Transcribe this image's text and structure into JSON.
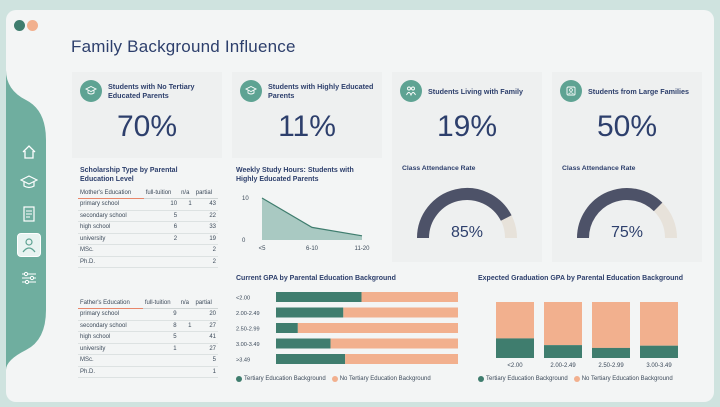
{
  "page": {
    "title": "Family Background Influence"
  },
  "colors": {
    "teal": "#3f7d6e",
    "teal_light": "#5ea393",
    "peach": "#f2b08e",
    "navy": "#4d5268",
    "track": "#e7e2da"
  },
  "sidebar": {
    "items": [
      {
        "name": "home-icon"
      },
      {
        "name": "graduation-cap-icon"
      },
      {
        "name": "document-icon"
      },
      {
        "name": "family-icon",
        "active": true
      },
      {
        "name": "sliders-icon"
      }
    ]
  },
  "kpis": [
    {
      "label": "Students with No Tertiary Educated Parents",
      "value": "70%",
      "icon": "graduation-cap-icon"
    },
    {
      "label": "Students with Highly Educated Parents",
      "value": "11%",
      "icon": "graduation-cap-icon"
    },
    {
      "label": "Students Living with Family",
      "value": "19%",
      "icon": "family-icon"
    },
    {
      "label": "Students from Large Families",
      "value": "50%",
      "icon": "family-icon"
    }
  ],
  "scholarship": {
    "title": "Scholarship Type by Parental Education Level",
    "mother": {
      "header": [
        "Mother's Education",
        "full-tuition",
        "n/a",
        "partial"
      ],
      "rows": [
        [
          "primary school",
          "10",
          "1",
          "43"
        ],
        [
          "secondary school",
          "5",
          "",
          "22"
        ],
        [
          "high school",
          "6",
          "",
          "33"
        ],
        [
          "university",
          "2",
          "",
          "19"
        ],
        [
          "MSc.",
          "",
          "",
          "2"
        ],
        [
          "Ph.D.",
          "",
          "",
          "2"
        ]
      ]
    },
    "father": {
      "header": [
        "Father's Education",
        "full-tuition",
        "n/a",
        "partial"
      ],
      "rows": [
        [
          "primary school",
          "9",
          "",
          "20"
        ],
        [
          "secondary school",
          "8",
          "1",
          "27"
        ],
        [
          "high school",
          "5",
          "",
          "41"
        ],
        [
          "university",
          "1",
          "",
          "27"
        ],
        [
          "MSc.",
          "",
          "",
          "5"
        ],
        [
          "Ph.D.",
          "",
          "",
          "1"
        ]
      ]
    }
  },
  "study_hours": {
    "title": "Weekly Study Hours: Students with Highly Educated Parents",
    "chart_data": {
      "type": "area",
      "categories": [
        "<5",
        "6-10",
        "11-20"
      ],
      "values": [
        10,
        3,
        1
      ],
      "yticks": [
        "0",
        "10"
      ],
      "ylim": [
        0,
        10
      ]
    }
  },
  "attendance": [
    {
      "title": "Class Attendance Rate",
      "value": "85%",
      "fraction": 0.85
    },
    {
      "title": "Class Attendance Rate",
      "value": "75%",
      "fraction": 0.75
    }
  ],
  "current_gpa": {
    "title": "Current GPA by Parental Education Background",
    "chart_data": {
      "type": "bar",
      "orientation": "horizontal",
      "stacked": true,
      "percent": true,
      "categories": [
        "<2.00",
        "2.00-2.49",
        "2.50-2.99",
        "3.00-3.49",
        ">3.49"
      ],
      "series": [
        {
          "name": "Tertiary Education Background",
          "values": [
            47,
            37,
            12,
            30,
            38
          ]
        },
        {
          "name": "No Tertiary Education Background",
          "values": [
            53,
            63,
            88,
            70,
            62
          ]
        }
      ]
    },
    "legend": [
      "Tertiary Education Background",
      "No Tertiary Education Background"
    ]
  },
  "expected_gpa": {
    "title": "Expected Graduation GPA by Parental Education Background",
    "chart_data": {
      "type": "bar",
      "stacked": true,
      "percent": true,
      "categories": [
        "<2.00",
        "2.00-2.49",
        "2.50-2.99",
        "3.00-3.49"
      ],
      "series": [
        {
          "name": "Tertiary Education Background",
          "values": [
            35,
            23,
            18,
            22
          ]
        },
        {
          "name": "No Tertiary Education Background",
          "values": [
            65,
            77,
            82,
            78
          ]
        }
      ]
    },
    "legend": [
      "Tertiary Education Background",
      "No Tertiary Education Background"
    ]
  }
}
